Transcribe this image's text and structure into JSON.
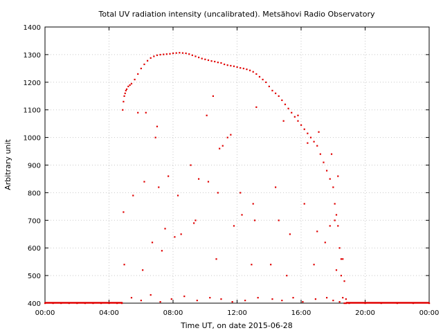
{
  "chart_data": {
    "type": "scatter",
    "title": "Total UV radiation intensity (uncalibrated). Metsähovi Radio Observatory",
    "xlabel": "Time UT, on date 2015-06-28",
    "ylabel": "Arbitrary unit",
    "xlim": [
      0,
      24
    ],
    "ylim": [
      400,
      1400
    ],
    "x_unit": "hours UT",
    "x_ticks": [
      0,
      4,
      8,
      12,
      16,
      20,
      24
    ],
    "x_tick_labels": [
      "00:00",
      "04:00",
      "08:00",
      "12:00",
      "16:00",
      "20:00",
      "00:00"
    ],
    "y_ticks": [
      400,
      500,
      600,
      700,
      800,
      900,
      1000,
      1100,
      1200,
      1300,
      1400
    ],
    "y_tick_labels": [
      "400",
      "500",
      "600",
      "700",
      "800",
      "900",
      "1000",
      "1100",
      "1200",
      "1300",
      "1400"
    ],
    "grid": true,
    "marker_color": "#e00000",
    "series": [
      {
        "x": [
          0.0,
          0.5,
          1.0,
          1.5,
          2.0,
          2.5,
          3.0,
          3.5,
          4.0,
          4.5,
          4.8,
          4.85,
          4.9,
          4.95,
          5.0,
          5.05,
          5.1,
          5.2,
          5.3,
          5.4,
          5.6,
          5.8,
          6.0,
          6.2,
          6.4,
          6.6,
          6.8,
          7.0,
          7.2,
          7.4,
          7.6,
          7.8,
          8.0,
          8.2,
          8.4,
          8.6,
          8.8,
          9.0,
          9.2,
          9.4,
          9.6,
          9.8,
          10.0,
          10.2,
          10.4,
          10.6,
          10.8,
          11.0,
          11.2,
          11.4,
          11.6,
          11.8,
          12.0,
          12.2,
          12.4,
          12.6,
          12.8,
          13.0,
          13.2,
          13.4,
          13.6,
          13.8,
          14.0,
          14.2,
          14.4,
          14.6,
          14.8,
          15.0,
          15.2,
          15.4,
          15.6,
          15.8,
          16.0,
          16.2,
          16.4,
          16.6,
          16.8,
          17.0,
          17.2,
          17.4,
          17.6,
          17.8,
          18.0,
          18.1,
          18.2,
          18.3,
          18.4,
          18.5,
          18.6,
          18.7,
          18.8,
          19.0,
          20.0,
          21.0,
          22.0,
          23.0,
          24.0,
          4.9,
          4.95,
          5.5,
          6.2,
          6.9,
          7.1,
          7.7,
          8.3,
          9.1,
          9.6,
          10.1,
          10.5,
          10.8,
          11.1,
          11.6,
          12.2,
          13.0,
          13.2,
          14.4,
          14.9,
          15.8,
          16.4,
          17.1,
          17.9,
          18.3,
          18.6,
          5.8,
          6.3,
          7.0,
          7.5,
          8.5,
          9.3,
          10.2,
          10.9,
          11.4,
          12.3,
          13.1,
          14.6,
          15.3,
          16.2,
          17.0,
          17.8,
          18.1,
          18.5,
          6.1,
          6.7,
          7.3,
          8.1,
          9.4,
          10.7,
          11.8,
          12.9,
          14.1,
          15.1,
          16.8,
          17.5,
          18.2,
          18.7,
          5.4,
          6.0,
          6.6,
          7.2,
          7.9,
          8.7,
          9.5,
          10.3,
          11.0,
          11.7,
          12.5,
          13.3,
          14.2,
          14.8,
          15.5,
          16.1,
          16.9,
          17.6,
          18.0,
          18.4,
          18.8
        ],
        "y": [
          400,
          400,
          400,
          400,
          400,
          400,
          400,
          400,
          400,
          400,
          400,
          1100,
          1130,
          1150,
          1160,
          1170,
          1175,
          1185,
          1190,
          1195,
          1210,
          1230,
          1250,
          1265,
          1278,
          1288,
          1294,
          1298,
          1300,
          1301,
          1302,
          1303,
          1305,
          1306,
          1307,
          1306,
          1305,
          1302,
          1298,
          1294,
          1290,
          1286,
          1283,
          1280,
          1277,
          1275,
          1272,
          1270,
          1265,
          1262,
          1260,
          1258,
          1255,
          1252,
          1250,
          1247,
          1243,
          1238,
          1230,
          1220,
          1210,
          1200,
          1185,
          1170,
          1160,
          1150,
          1135,
          1120,
          1105,
          1090,
          1075,
          1060,
          1045,
          1030,
          1015,
          1000,
          985,
          970,
          940,
          910,
          880,
          850,
          820,
          760,
          720,
          680,
          600,
          500,
          420,
          400,
          400,
          400,
          400,
          400,
          400,
          400,
          400,
          730,
          540,
          790,
          840,
          1000,
          820,
          860,
          790,
          900,
          850,
          1080,
          1150,
          800,
          970,
          1010,
          800,
          760,
          1110,
          820,
          1060,
          1080,
          980,
          1020,
          940,
          860,
          560,
          1090,
          1090,
          1040,
          670,
          650,
          690,
          840,
          960,
          1000,
          720,
          700,
          700,
          650,
          760,
          660,
          680,
          700,
          560,
          520,
          620,
          590,
          640,
          700,
          560,
          680,
          540,
          540,
          500,
          540,
          620,
          520,
          480,
          420,
          410,
          430,
          405,
          415,
          425,
          410,
          420,
          415,
          405,
          410,
          420,
          415,
          410,
          420,
          405,
          415,
          420,
          410,
          405,
          415
        ]
      }
    ]
  }
}
